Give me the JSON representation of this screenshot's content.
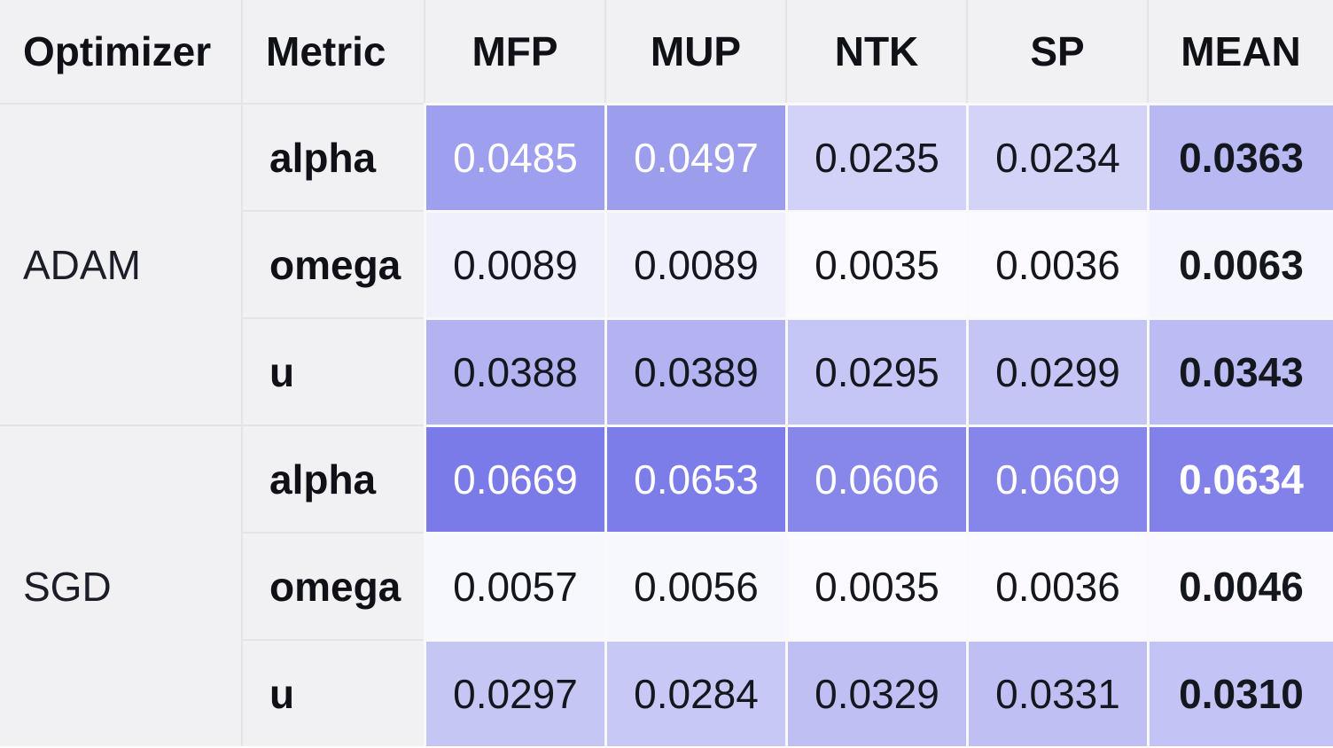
{
  "palette": {
    "grey_bg": "#f1f1f4",
    "grid_line": "#e3e3e8",
    "cell_gap": "#f9f9fc",
    "header_text": "#0f1117",
    "optimizer_text": "#1b1e28",
    "value_text": "#15171e",
    "value_text_inverse": "#ffffff"
  },
  "heat": {
    "vmin": 0.0035,
    "vmax": 0.0669,
    "min_color": "#fbfbff",
    "max_color": "#7a7ae8",
    "white_text_threshold": 0.65
  },
  "table": {
    "columns": [
      "Optimizer",
      "Metric",
      "MFP",
      "MUP",
      "NTK",
      "SP",
      "MEAN"
    ],
    "groups": [
      {
        "optimizer": "ADAM",
        "rows": [
          {
            "metric": "alpha",
            "values": [
              "0.0485",
              "0.0497",
              "0.0235",
              "0.0234",
              "0.0363"
            ]
          },
          {
            "metric": "omega",
            "values": [
              "0.0089",
              "0.0089",
              "0.0035",
              "0.0036",
              "0.0063"
            ]
          },
          {
            "metric": "u",
            "values": [
              "0.0388",
              "0.0389",
              "0.0295",
              "0.0299",
              "0.0343"
            ]
          }
        ]
      },
      {
        "optimizer": "SGD",
        "rows": [
          {
            "metric": "alpha",
            "values": [
              "0.0669",
              "0.0653",
              "0.0606",
              "0.0609",
              "0.0634"
            ]
          },
          {
            "metric": "omega",
            "values": [
              "0.0057",
              "0.0056",
              "0.0035",
              "0.0036",
              "0.0046"
            ]
          },
          {
            "metric": "u",
            "values": [
              "0.0297",
              "0.0284",
              "0.0329",
              "0.0331",
              "0.0310"
            ]
          }
        ]
      }
    ]
  },
  "chart_data": {
    "type": "heatmap",
    "x_labels": [
      "MFP",
      "MUP",
      "NTK",
      "SP",
      "MEAN"
    ],
    "y_labels": [
      [
        "ADAM",
        "alpha"
      ],
      [
        "ADAM",
        "omega"
      ],
      [
        "ADAM",
        "u"
      ],
      [
        "SGD",
        "alpha"
      ],
      [
        "SGD",
        "omega"
      ],
      [
        "SGD",
        "u"
      ]
    ],
    "values": [
      [
        0.0485,
        0.0497,
        0.0235,
        0.0234,
        0.0363
      ],
      [
        0.0089,
        0.0089,
        0.0035,
        0.0036,
        0.0063
      ],
      [
        0.0388,
        0.0389,
        0.0295,
        0.0299,
        0.0343
      ],
      [
        0.0669,
        0.0653,
        0.0606,
        0.0609,
        0.0634
      ],
      [
        0.0057,
        0.0056,
        0.0035,
        0.0036,
        0.0046
      ],
      [
        0.0297,
        0.0284,
        0.0329,
        0.0331,
        0.031
      ]
    ],
    "vmin": 0.0035,
    "vmax": 0.0669,
    "colormap": "white-to-purple",
    "legend": "none",
    "grid": "white gaps between heat cells; grey gridlines between label cells"
  }
}
